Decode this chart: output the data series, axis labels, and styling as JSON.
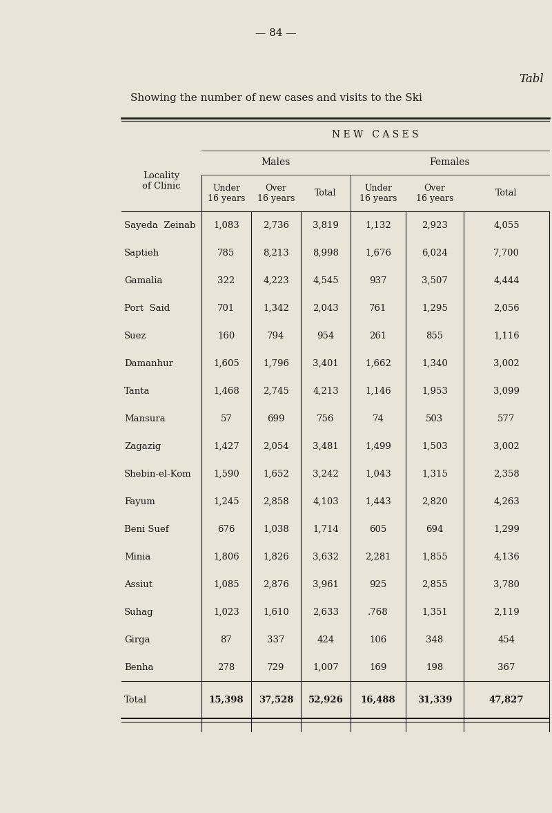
{
  "page_number": "— 84 —",
  "table_label": "Tabl",
  "subtitle": "Showing the number of new cases and visits to the Ski",
  "bg_color": "#e8e4d8",
  "header_new_cases": "N E W   C A S E S",
  "header_males": "Males",
  "header_females": "Females",
  "col_headers": [
    "Under\n16 years",
    "Over\n16 years",
    "Total",
    "Under\n16 years",
    "Over\n16 years",
    "Total"
  ],
  "row_header": "Locality\nof Clinic",
  "localities": [
    "Sayeda  Zeinab",
    "Saptieh",
    "Gamalia",
    "Port  Said",
    "Suez",
    "Damanhur",
    "Tanta",
    "Mansura",
    "Zagazig",
    "Shebin-el-Kom",
    "Fayum",
    "Beni Suef",
    "Minia",
    "Assiut",
    "Suhag",
    "Girga",
    "Benha",
    "Total"
  ],
  "data": [
    [
      1083,
      2736,
      3819,
      1132,
      2923,
      4055
    ],
    [
      785,
      8213,
      8998,
      1676,
      6024,
      7700
    ],
    [
      322,
      4223,
      4545,
      937,
      3507,
      4444
    ],
    [
      701,
      1342,
      2043,
      761,
      1295,
      2056
    ],
    [
      160,
      794,
      954,
      261,
      855,
      1116
    ],
    [
      1605,
      1796,
      3401,
      1662,
      1340,
      3002
    ],
    [
      1468,
      2745,
      4213,
      1146,
      1953,
      3099
    ],
    [
      57,
      699,
      756,
      74,
      503,
      577
    ],
    [
      1427,
      2054,
      3481,
      1499,
      1503,
      3002
    ],
    [
      1590,
      1652,
      3242,
      1043,
      1315,
      2358
    ],
    [
      1245,
      2858,
      4103,
      1443,
      2820,
      4263
    ],
    [
      676,
      1038,
      1714,
      605,
      694,
      1299
    ],
    [
      1806,
      1826,
      3632,
      2281,
      1855,
      4136
    ],
    [
      1085,
      2876,
      3961,
      925,
      2855,
      3780
    ],
    [
      1023,
      1610,
      2633,
      768,
      1351,
      2119
    ],
    [
      87,
      337,
      424,
      106,
      348,
      454
    ],
    [
      278,
      729,
      1007,
      169,
      198,
      367
    ],
    [
      15398,
      37528,
      52926,
      16488,
      31339,
      47827
    ]
  ],
  "suhag_under16_display": ".768",
  "font_size_data": 9.5,
  "font_size_header": 10,
  "font_size_title": 11
}
